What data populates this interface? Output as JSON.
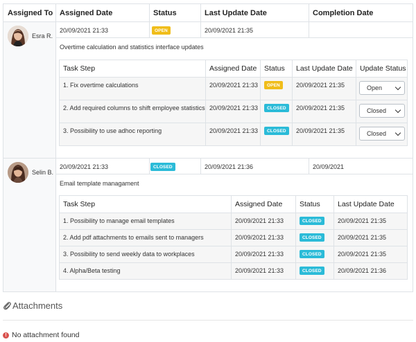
{
  "columns": {
    "assigned_to": "Assigned To",
    "assigned_date": "Assigned Date",
    "status": "Status",
    "last_update_date": "Last Update Date",
    "completion_date": "Completion Date"
  },
  "tasks": [
    {
      "assignee": "Esra R.",
      "assigned_date": "20/09/2021 21:33",
      "status": "OPEN",
      "last_update": "20/09/2021 21:35",
      "completion_date": "",
      "description": "Overtime calculation and statistics interface updates",
      "sub_headers": {
        "step": "Task Step",
        "assigned": "Assigned Date",
        "status": "Status",
        "last_update": "Last Update Date",
        "update_status": "Update Status"
      },
      "steps": [
        {
          "step": "1. Fix overtime calculations",
          "assigned": "20/09/2021 21:33",
          "status": "OPEN",
          "last_update": "20/09/2021 21:35",
          "select": "Open"
        },
        {
          "step": "2. Add required columns to shift employee statistics",
          "assigned": "20/09/2021 21:33",
          "status": "CLOSED",
          "last_update": "20/09/2021 21:35",
          "select": "Closed"
        },
        {
          "step": "3. Possibility to use adhoc reporting",
          "assigned": "20/09/2021 21:33",
          "status": "CLOSED",
          "last_update": "20/09/2021 21:35",
          "select": "Closed"
        }
      ]
    },
    {
      "assignee": "Selin B.",
      "assigned_date": "20/09/2021 21:33",
      "status": "CLOSED",
      "last_update": "20/09/2021 21:36",
      "completion_date": "20/09/2021",
      "description": "Email template managament",
      "sub_headers": {
        "step": "Task Step",
        "assigned": "Assigned Date",
        "status": "Status",
        "last_update": "Last Update Date"
      },
      "steps": [
        {
          "step": "1. Possibility to manage email templates",
          "assigned": "20/09/2021 21:33",
          "status": "CLOSED",
          "last_update": "20/09/2021 21:35"
        },
        {
          "step": "2. Add pdf attachments to emails sent to managers",
          "assigned": "20/09/2021 21:33",
          "status": "CLOSED",
          "last_update": "20/09/2021 21:35"
        },
        {
          "step": "3. Possibility to send weekly data to workplaces",
          "assigned": "20/09/2021 21:33",
          "status": "CLOSED",
          "last_update": "20/09/2021 21:35"
        },
        {
          "step": "4. Alpha/Beta testing",
          "assigned": "20/09/2021 21:33",
          "status": "CLOSED",
          "last_update": "20/09/2021 21:36"
        }
      ]
    }
  ],
  "attachments": {
    "title": "Attachments",
    "empty_text": "No attachment found"
  },
  "colors": {
    "open": "#f0bd1a",
    "closed": "#2bbbd8",
    "error": "#d9534f"
  }
}
